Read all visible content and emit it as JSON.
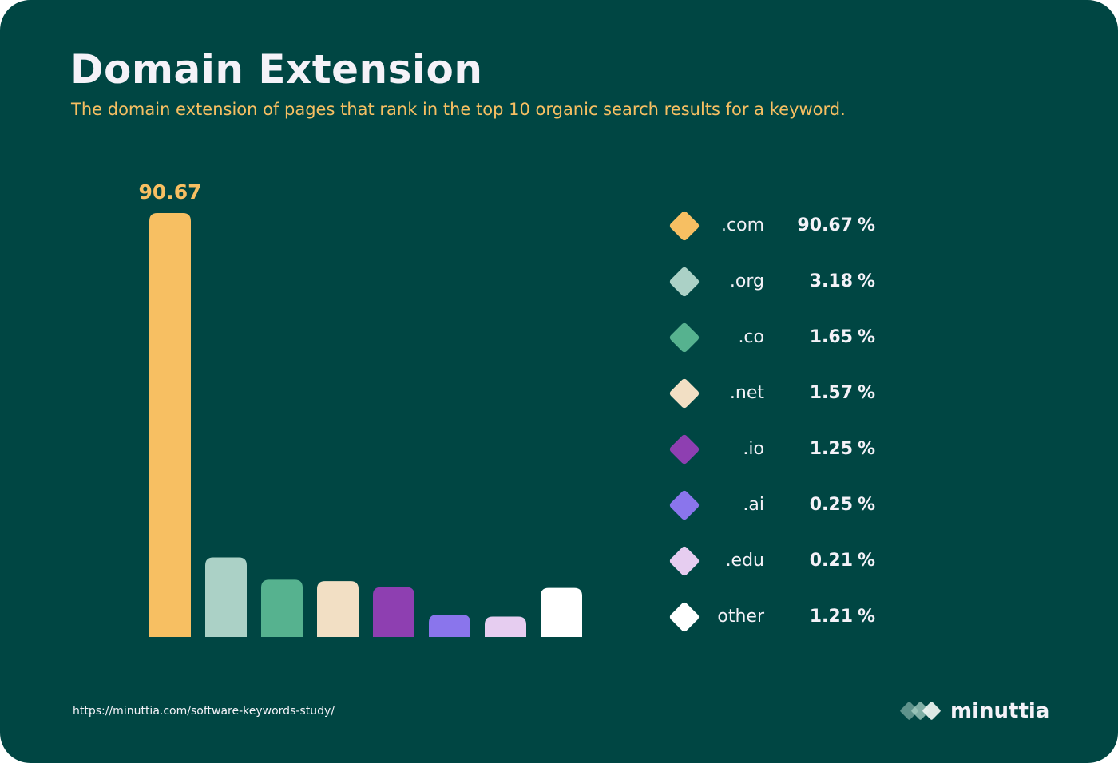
{
  "title": "Domain Extension",
  "subtitle": "The domain extension of pages that rank in the top 10 organic search results for a keyword.",
  "source_url": "https://minuttia.com/software-keywords-study/",
  "brand": {
    "name": "minuttia",
    "icon": "diamonds-logo-icon"
  },
  "colors": {
    "background": "#004643",
    "accent": "#f7bf62",
    "text": "#f4f2f8"
  },
  "legend": [
    {
      "name": ".com",
      "value": "90.67",
      "unit": "%",
      "color": "#f7bf62"
    },
    {
      "name": ".org",
      "value": "3.18",
      "unit": "%",
      "color": "#abd1c6"
    },
    {
      "name": ".co",
      "value": "1.65",
      "unit": "%",
      "color": "#56b28f"
    },
    {
      "name": ".net",
      "value": "1.57",
      "unit": "%",
      "color": "#f2dfc4"
    },
    {
      "name": ".io",
      "value": "1.25",
      "unit": "%",
      "color": "#8e3fb1"
    },
    {
      "name": ".ai",
      "value": "0.25",
      "unit": "%",
      "color": "#8a75ec"
    },
    {
      "name": ".edu",
      "value": "0.21",
      "unit": "%",
      "color": "#e6cdf0"
    },
    {
      "name": "other",
      "value": "1.21",
      "unit": "%",
      "color": "#ffffff"
    }
  ],
  "chart_data": {
    "type": "bar",
    "title": "Domain Extension",
    "subtitle": "The domain extension of pages that rank in the top 10 organic search results for a keyword.",
    "categories": [
      ".com",
      ".org",
      ".co",
      ".net",
      ".io",
      ".ai",
      ".edu",
      "other"
    ],
    "values": [
      90.67,
      3.18,
      1.65,
      1.57,
      1.25,
      0.25,
      0.21,
      1.21
    ],
    "unit": "%",
    "colors": [
      "#f7bf62",
      "#abd1c6",
      "#56b28f",
      "#f2dfc4",
      "#8e3fb1",
      "#8a75ec",
      "#e6cdf0",
      "#ffffff"
    ],
    "data_labels": [
      "90.67"
    ],
    "legend_position": "right",
    "grid": false
  }
}
